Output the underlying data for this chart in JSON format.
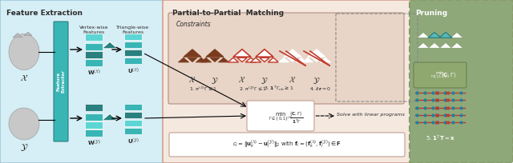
{
  "title_feature": "Feature Extraction",
  "title_matching": "Partial-to-Partial  Matching",
  "title_pruning": "Pruning",
  "bg_feature_color": "#d6eef5",
  "bg_matching_color": "#f5e8df",
  "bg_pruning_color": "#8fa87a",
  "constraints_bg": "#e8d5c8",
  "teal_dark": "#2a7f7f",
  "teal_mid": "#3ab5b5",
  "teal_light": "#5dd5d5",
  "brown_dark": "#7a3b1e",
  "brown_mid": "#a0522d",
  "red_accent": "#c0392b",
  "white": "#ffffff",
  "gray_shape": "#c0c0c0",
  "text_dark": "#2c2c2c",
  "arrow_color": "#1a1a1a",
  "dashed_border": "#8a9a6a"
}
